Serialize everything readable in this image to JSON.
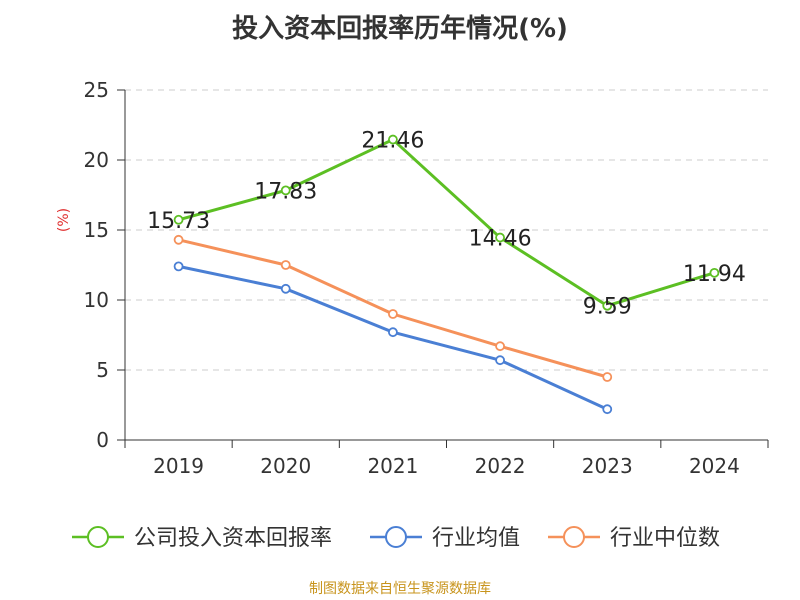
{
  "title": "投入资本回报率历年情况(%)",
  "source": "制图数据来自恒生聚源数据库",
  "chart_data": {
    "type": "line",
    "title": "投入资本回报率历年情况(%)",
    "xlabel": "",
    "ylabel": "(%)",
    "ylim": [
      0,
      25
    ],
    "yticks": [
      0,
      5,
      10,
      15,
      20,
      25
    ],
    "categories": [
      "2019",
      "2020",
      "2021",
      "2022",
      "2023",
      "2024"
    ],
    "grid": true,
    "legend_position": "bottom",
    "series": [
      {
        "name": "公司投入资本回报率",
        "color": "#5cbf23",
        "values": [
          15.73,
          17.83,
          21.46,
          14.46,
          9.59,
          11.94
        ],
        "labels": [
          "15.73",
          "17.83",
          "21.46",
          "14.46",
          "9.59",
          "11.94"
        ]
      },
      {
        "name": "行业均值",
        "color": "#4a7fd4",
        "values": [
          12.4,
          10.8,
          7.7,
          5.7,
          2.2,
          null
        ]
      },
      {
        "name": "行业中位数",
        "color": "#f5915a",
        "values": [
          14.3,
          12.5,
          9.0,
          6.7,
          4.5,
          null
        ]
      }
    ]
  }
}
